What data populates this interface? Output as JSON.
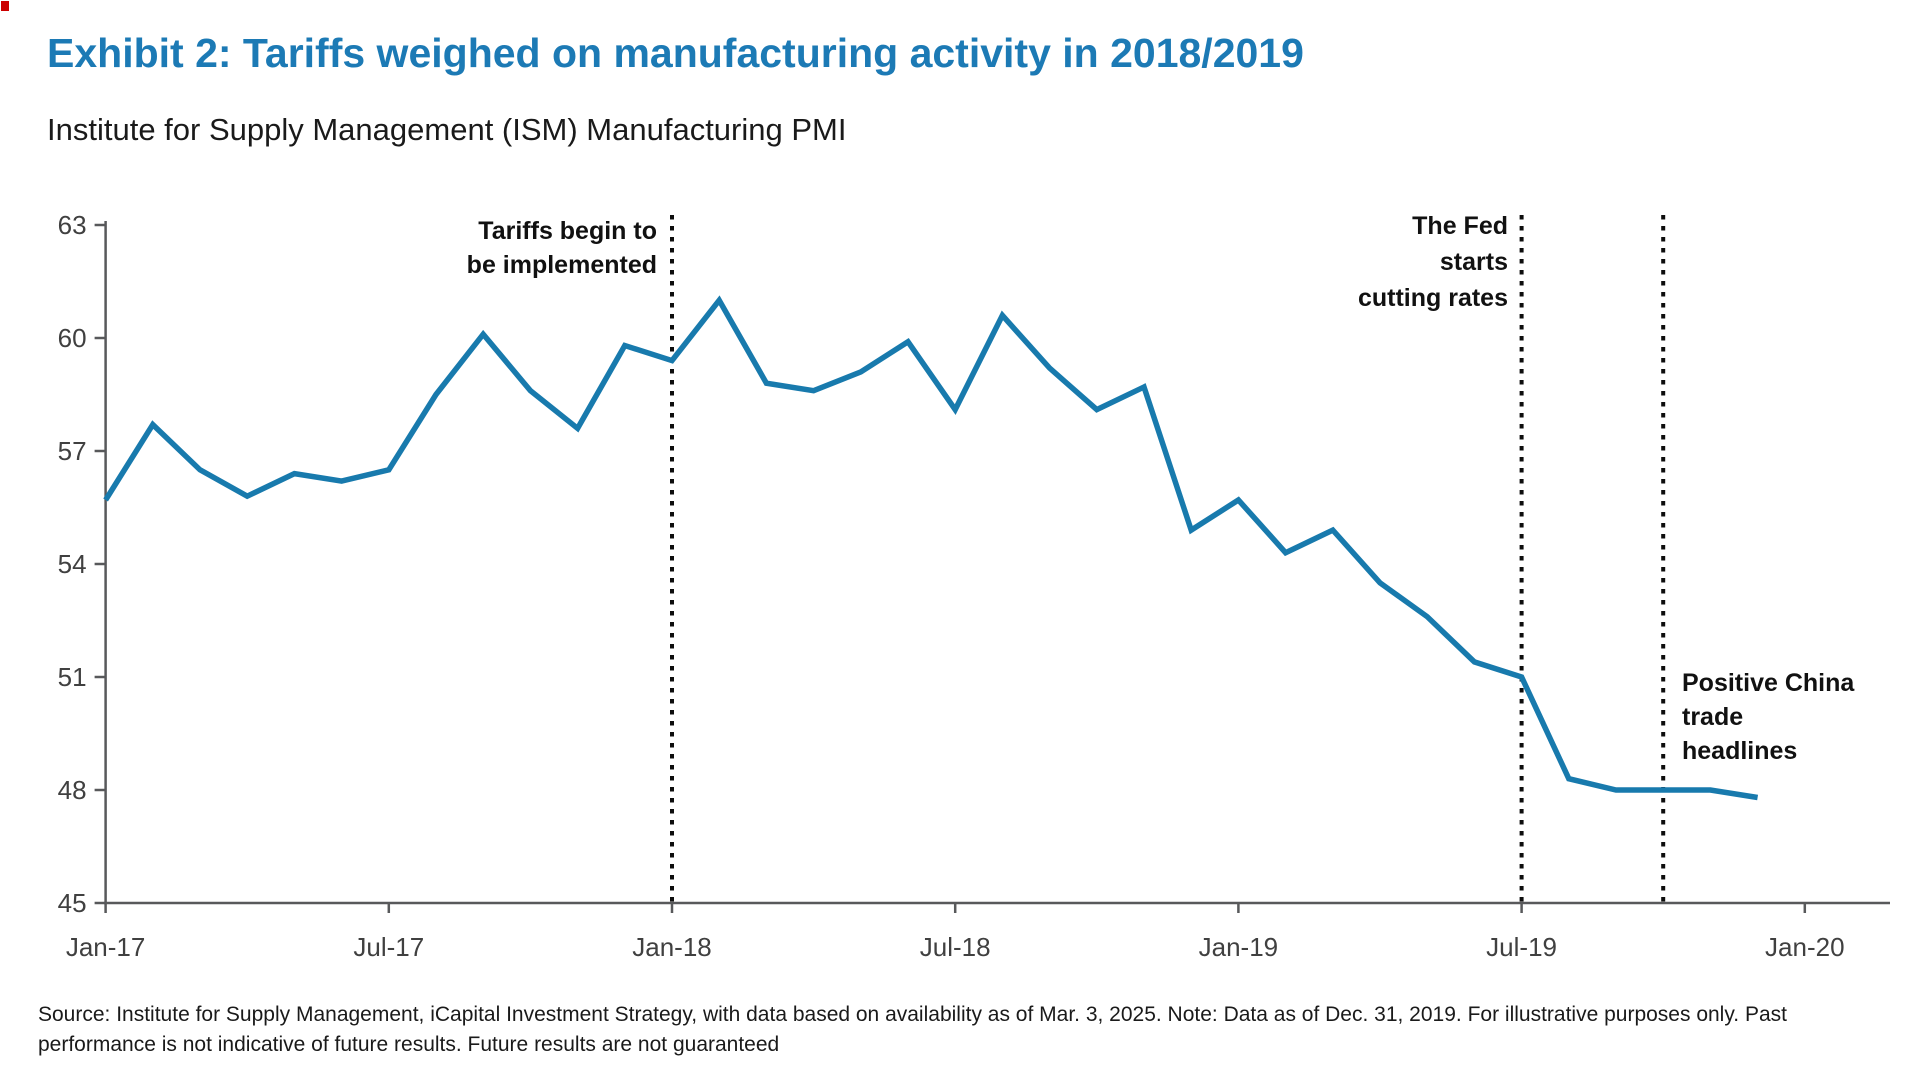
{
  "header": {
    "title": "Exhibit 2: Tariffs weighed on manufacturing activity in 2018/2019",
    "subtitle": "Institute for Supply Management (ISM) Manufacturing PMI"
  },
  "colors": {
    "title_blue": "#1c7ab5",
    "line_blue": "#187aad",
    "axis_gray": "#58595b",
    "tick_label_gray": "#404040",
    "event_line_black": "#0d0d0d",
    "corner_marker_red": "#cc0000"
  },
  "chart_data": {
    "type": "line",
    "title": "Exhibit 2: Tariffs weighed on manufacturing activity in 2018/2019",
    "subtitle": "Institute for Supply Management (ISM) Manufacturing PMI",
    "xlabel": "",
    "ylabel": "",
    "ylim": [
      45,
      63
    ],
    "y_ticks": [
      45,
      48,
      51,
      54,
      57,
      60,
      63
    ],
    "x_tick_labels": [
      "Jan-17",
      "Jul-17",
      "Jan-18",
      "Jul-18",
      "Jan-19",
      "Jul-19",
      "Jan-20"
    ],
    "x_tick_months": [
      0,
      6,
      12,
      18,
      24,
      30,
      36
    ],
    "grid": false,
    "legend": "none",
    "series_name": "ISM Manufacturing PMI",
    "months": [
      "Jan-17",
      "Feb-17",
      "Mar-17",
      "Apr-17",
      "May-17",
      "Jun-17",
      "Jul-17",
      "Aug-17",
      "Sep-17",
      "Oct-17",
      "Nov-17",
      "Dec-17",
      "Jan-18",
      "Feb-18",
      "Mar-18",
      "Apr-18",
      "May-18",
      "Jun-18",
      "Jul-18",
      "Aug-18",
      "Sep-18",
      "Oct-18",
      "Nov-18",
      "Dec-18",
      "Jan-19",
      "Feb-19",
      "Mar-19",
      "Apr-19",
      "May-19",
      "Jun-19",
      "Jul-19",
      "Aug-19",
      "Sep-19",
      "Oct-19",
      "Nov-19",
      "Dec-19"
    ],
    "values": [
      55.7,
      57.7,
      56.5,
      55.8,
      56.4,
      56.2,
      56.5,
      58.5,
      60.1,
      58.6,
      57.6,
      59.8,
      59.4,
      61.0,
      58.8,
      58.6,
      59.1,
      59.9,
      58.1,
      60.6,
      59.2,
      58.1,
      58.7,
      54.9,
      55.7,
      54.3,
      54.9,
      53.5,
      52.6,
      51.4,
      51.0,
      48.3,
      48.0,
      48.0,
      48.0,
      47.8
    ],
    "annotations": [
      {
        "label": "Tariffs begin to\nbe implemented",
        "month": "Jan-18",
        "month_index": 12
      },
      {
        "label": "The Fed\nstarts\ncutting rates",
        "month": "Jul-19",
        "month_index": 30
      },
      {
        "label": "Positive China\ntrade\nheadlines",
        "month": "Oct-19",
        "month_index": 33
      }
    ]
  },
  "footer": {
    "source": "Source: Institute for Supply Management, iCapital Investment Strategy, with data based on availability as of Mar. 3, 2025. Note: Data as of Dec. 31, 2019.  For illustrative purposes only. Past performance is not indicative of future results. Future results are not guaranteed"
  }
}
